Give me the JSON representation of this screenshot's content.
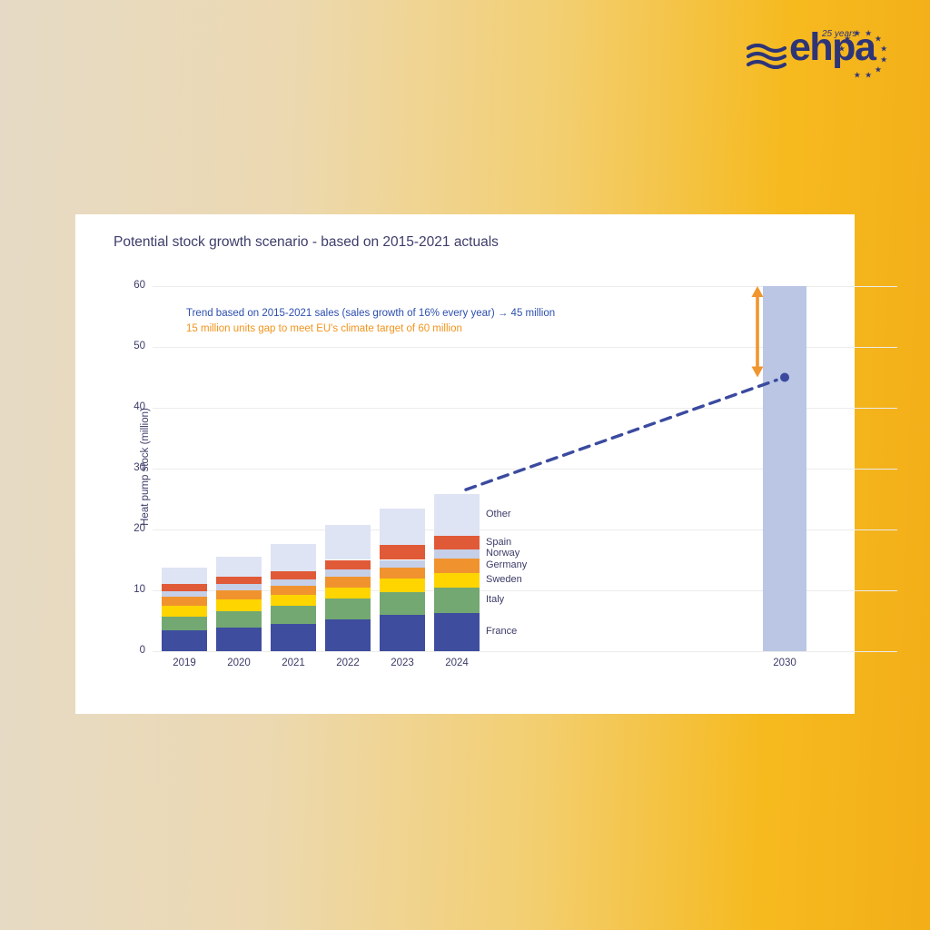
{
  "logo": {
    "brand": "ehpa",
    "anniversary": "25 years",
    "color": "#2d3478",
    "star_count": 10
  },
  "card": {
    "title": "Potential stock growth scenario - based on 2015-2021 actuals"
  },
  "annotations": {
    "trend": "Trend based on 2015-2021 sales (sales growth of 16% every year) → 45 million",
    "gap": "15 million units gap to meet EU's climate target of 60 million",
    "trend_color": "#2d4fae",
    "gap_color": "#f2941c"
  },
  "chart_data": {
    "type": "bar",
    "stacked": true,
    "title": "Potential stock growth scenario - based on 2015-2021 actuals",
    "xlabel": "",
    "ylabel": "Heat pump stock (million)",
    "ylim": [
      0,
      60
    ],
    "ytick_step": 10,
    "grid": true,
    "legend_position": "inline-right-of-last-bar",
    "categories": [
      "2019",
      "2020",
      "2021",
      "2022",
      "2023",
      "2024"
    ],
    "series": [
      {
        "name": "France",
        "color": "#3f4d9e",
        "values": [
          3.4,
          3.9,
          4.5,
          5.2,
          5.9,
          6.3
        ]
      },
      {
        "name": "Italy",
        "color": "#73a872",
        "values": [
          2.3,
          2.6,
          3.0,
          3.5,
          3.8,
          4.2
        ]
      },
      {
        "name": "Sweden",
        "color": "#ffd500",
        "values": [
          1.8,
          2.0,
          1.8,
          1.8,
          2.2,
          2.4
        ]
      },
      {
        "name": "Germany",
        "color": "#f0932f",
        "values": [
          1.4,
          1.5,
          1.5,
          1.7,
          1.8,
          2.3
        ]
      },
      {
        "name": "Norway",
        "color": "#c5cfe8",
        "values": [
          1.0,
          1.1,
          1.0,
          1.3,
          1.3,
          1.5
        ]
      },
      {
        "name": "Spain",
        "color": "#e05a38",
        "values": [
          1.1,
          1.2,
          1.4,
          1.5,
          2.4,
          2.2
        ]
      },
      {
        "name": "Other",
        "color": "#dfe4f4",
        "values": [
          2.8,
          3.2,
          4.4,
          5.7,
          6.1,
          6.9
        ]
      }
    ],
    "totals": [
      13.8,
      15.5,
      17.6,
      20.7,
      23.5,
      25.8
    ],
    "target_bar": {
      "label": "2030",
      "value": 60,
      "color": "#bac6e4"
    },
    "trend_point": {
      "category": "2030",
      "value": 45,
      "color": "#3b4a9f"
    },
    "trend_line": {
      "from_category": "2024",
      "from_value": 25.8,
      "to_value": 45,
      "style": "dashed",
      "color": "#3b4a9f"
    },
    "gap_arrow": {
      "from_value": 45,
      "to_value": 60,
      "color": "#f0962d"
    }
  }
}
